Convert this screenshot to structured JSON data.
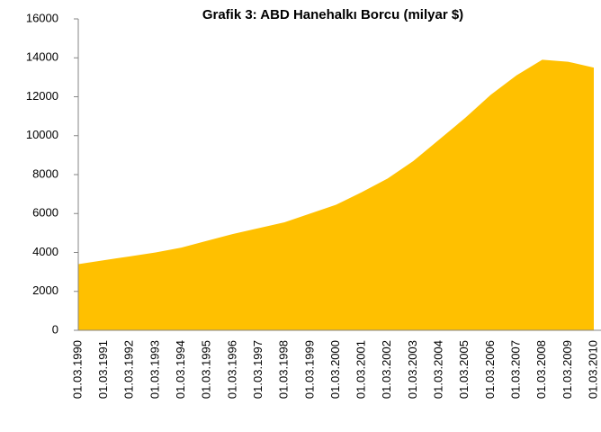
{
  "chart_data": {
    "type": "area",
    "title": "Grafik 3: ABD Hanehalkı Borcu (milyar $)",
    "categories": [
      "01.03.1990",
      "01.03.1991",
      "01.03.1992",
      "01.03.1993",
      "01.03.1994",
      "01.03.1995",
      "01.03.1996",
      "01.03.1997",
      "01.03.1998",
      "01.03.1999",
      "01.03.2000",
      "01.03.2001",
      "01.03.2002",
      "01.03.2003",
      "01.03.2004",
      "01.03.2005",
      "01.03.2006",
      "01.03.2007",
      "01.03.2008",
      "01.03.2009",
      "01.03.2010"
    ],
    "values": [
      3400,
      3600,
      3800,
      4000,
      4250,
      4600,
      4950,
      5250,
      5550,
      6000,
      6450,
      7100,
      7800,
      8700,
      9800,
      10900,
      12100,
      13100,
      13900,
      13800,
      13500
    ],
    "color": "#ffc000",
    "ylim": [
      0,
      16000
    ],
    "yticks": [
      0,
      2000,
      4000,
      6000,
      8000,
      10000,
      12000,
      14000,
      16000
    ],
    "grid": false
  }
}
